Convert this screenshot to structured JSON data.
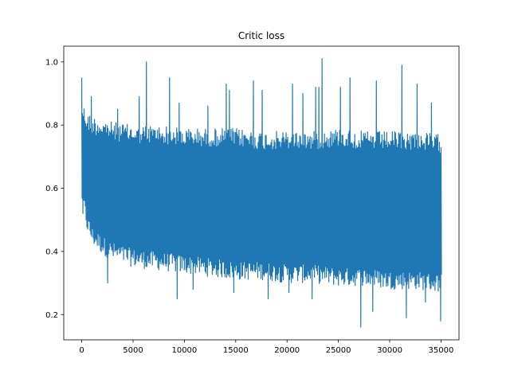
{
  "chart_data": {
    "type": "line",
    "title": "Critic loss",
    "xlabel": "",
    "ylabel": "",
    "xlim": [
      -1750,
      36750
    ],
    "ylim": [
      0.12,
      1.05
    ],
    "grid": false,
    "legend": "none",
    "x_ticks": [
      0,
      5000,
      10000,
      15000,
      20000,
      25000,
      30000,
      35000
    ],
    "x_tick_labels": [
      "0",
      "5000",
      "10000",
      "15000",
      "20000",
      "25000",
      "30000",
      "35000"
    ],
    "y_ticks": [
      0.2,
      0.4,
      0.6,
      0.8,
      1.0
    ],
    "y_tick_labels": [
      "0.2",
      "0.4",
      "0.6",
      "0.8",
      "1.0"
    ],
    "series": [
      {
        "color": "#1f77b4",
        "x_range": [
          0,
          35000
        ],
        "num_points": 35000,
        "envelope": {
          "x": [
            0,
            500,
            1000,
            2000,
            3000,
            5000,
            7500,
            10000,
            12500,
            15000,
            17500,
            20000,
            22500,
            25000,
            27500,
            30000,
            32500,
            35000
          ],
          "upper_typical": [
            0.88,
            0.84,
            0.83,
            0.82,
            0.81,
            0.8,
            0.8,
            0.79,
            0.79,
            0.79,
            0.78,
            0.78,
            0.78,
            0.79,
            0.78,
            0.78,
            0.78,
            0.77
          ],
          "lower_typical": [
            0.55,
            0.46,
            0.42,
            0.39,
            0.37,
            0.35,
            0.34,
            0.33,
            0.32,
            0.31,
            0.31,
            0.3,
            0.3,
            0.29,
            0.29,
            0.28,
            0.28,
            0.27
          ]
        },
        "max_spikes": [
          {
            "x": 0,
            "y": 0.95
          },
          {
            "x": 1000,
            "y": 0.89
          },
          {
            "x": 3500,
            "y": 0.85
          },
          {
            "x": 5600,
            "y": 0.89
          },
          {
            "x": 6300,
            "y": 1.0
          },
          {
            "x": 8600,
            "y": 0.95
          },
          {
            "x": 9500,
            "y": 0.87
          },
          {
            "x": 12300,
            "y": 0.86
          },
          {
            "x": 14100,
            "y": 0.93
          },
          {
            "x": 14400,
            "y": 0.91
          },
          {
            "x": 16700,
            "y": 0.94
          },
          {
            "x": 17600,
            "y": 0.91
          },
          {
            "x": 20500,
            "y": 0.93
          },
          {
            "x": 21500,
            "y": 0.9
          },
          {
            "x": 22800,
            "y": 0.92
          },
          {
            "x": 23100,
            "y": 0.92
          },
          {
            "x": 23400,
            "y": 1.01
          },
          {
            "x": 25200,
            "y": 0.92
          },
          {
            "x": 26100,
            "y": 0.95
          },
          {
            "x": 28700,
            "y": 0.94
          },
          {
            "x": 31200,
            "y": 0.99
          },
          {
            "x": 32600,
            "y": 0.93
          },
          {
            "x": 34000,
            "y": 0.87
          }
        ],
        "min_spikes": [
          {
            "x": 100,
            "y": 0.52
          },
          {
            "x": 2500,
            "y": 0.3
          },
          {
            "x": 9300,
            "y": 0.25
          },
          {
            "x": 10800,
            "y": 0.28
          },
          {
            "x": 14800,
            "y": 0.27
          },
          {
            "x": 18200,
            "y": 0.25
          },
          {
            "x": 20200,
            "y": 0.27
          },
          {
            "x": 22500,
            "y": 0.25
          },
          {
            "x": 27200,
            "y": 0.16
          },
          {
            "x": 28400,
            "y": 0.21
          },
          {
            "x": 31600,
            "y": 0.19
          },
          {
            "x": 33500,
            "y": 0.24
          },
          {
            "x": 34950,
            "y": 0.18
          }
        ],
        "end_value": 0.73
      }
    ]
  }
}
